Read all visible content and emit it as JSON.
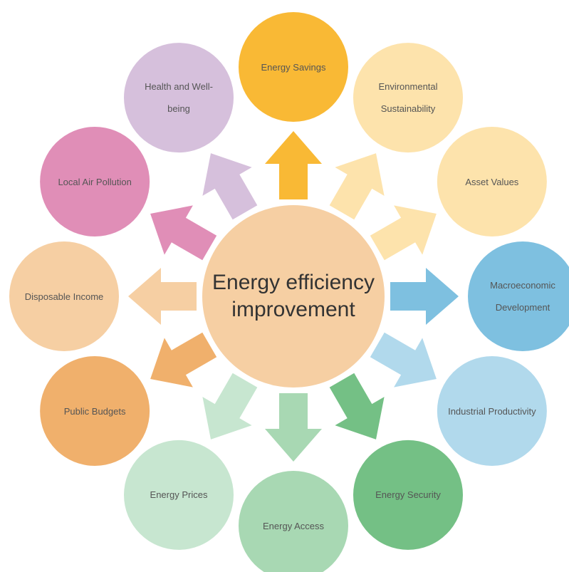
{
  "center": {
    "label": "Energy efficiency improvement",
    "color": "#f6cfa3"
  },
  "nodes": [
    {
      "label": "Energy Savings",
      "color": "#f9b935"
    },
    {
      "label": "Environmental Sustainability",
      "color": "#fde3ac"
    },
    {
      "label": "Asset Values",
      "color": "#fde3ac"
    },
    {
      "label": "Macroeconomic Development",
      "color": "#7ec0e0"
    },
    {
      "label": "Industrial Productivity",
      "color": "#b1d9ec"
    },
    {
      "label": "Energy Security",
      "color": "#74c085"
    },
    {
      "label": "Energy Access",
      "color": "#a8d8b3"
    },
    {
      "label": "Energy Prices",
      "color": "#c7e6d0"
    },
    {
      "label": "Public Budgets",
      "color": "#f0b06c"
    },
    {
      "label": "Disposable Income",
      "color": "#f6cfa3"
    },
    {
      "label": "Local Air Pollution",
      "color": "#e08eb7"
    },
    {
      "label": "Health and Well-being",
      "color": "#d6c0dc"
    }
  ]
}
